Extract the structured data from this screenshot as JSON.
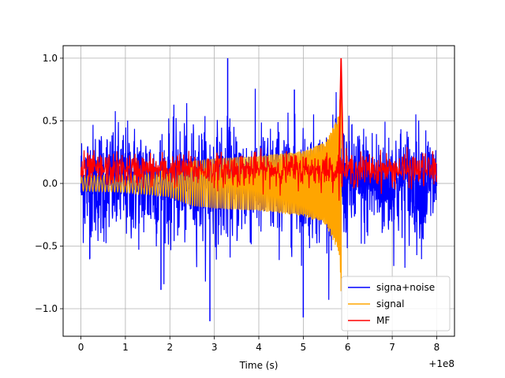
{
  "chart_data": {
    "type": "line",
    "title": "",
    "xlabel": "Time (s)",
    "ylabel": "",
    "x_offset_label": "+1e8",
    "xlim": [
      -0.4,
      8.4
    ],
    "ylim": [
      -1.22,
      1.1
    ],
    "x_ticks": [
      0,
      1,
      2,
      3,
      4,
      5,
      6,
      7,
      8
    ],
    "x_tick_labels": [
      "0",
      "1",
      "2",
      "3",
      "4",
      "5",
      "6",
      "7",
      "8"
    ],
    "y_ticks": [
      -1.0,
      -0.5,
      0.0,
      0.5,
      1.0
    ],
    "y_tick_labels": [
      "−1.0",
      "−0.5",
      "0.0",
      "0.5",
      "1.0"
    ],
    "grid": true,
    "legend_position": "lower-right",
    "series": [
      {
        "name": "signa+noise",
        "color": "#0000ff",
        "x_range": [
          0,
          8
        ],
        "description": "noisy band roughly between -0.6 and +0.6, spikes to about -1.1 and +1.0",
        "typical_amplitude": [
          -0.55,
          0.55
        ],
        "peak_values": [
          {
            "x": 2.9,
            "y": -1.1
          },
          {
            "x": 3.3,
            "y": 1.0
          },
          {
            "x": 5.0,
            "y": -1.07
          },
          {
            "x": 0.2,
            "y": -0.6
          },
          {
            "x": 1.8,
            "y": -0.85
          },
          {
            "x": 4.8,
            "y": 0.75
          }
        ]
      },
      {
        "name": "signal",
        "color": "#ffa500",
        "x_range": [
          0,
          5.85
        ],
        "description": "chirp with growing amplitude ending near t=5.85",
        "envelope": {
          "x": [
            0,
            1,
            2,
            2.5,
            3,
            4,
            5,
            5.5,
            5.8,
            5.85
          ],
          "upper": [
            0.06,
            0.07,
            0.11,
            0.18,
            0.2,
            0.22,
            0.26,
            0.33,
            0.55,
            1.0
          ],
          "lower": [
            -0.06,
            -0.07,
            -0.11,
            -0.18,
            -0.2,
            -0.22,
            -0.26,
            -0.33,
            -0.55,
            -0.86
          ]
        }
      },
      {
        "name": "MF",
        "color": "#ff0000",
        "x_range": [
          0,
          8
        ],
        "description": "matched-filter output, noise between about -0.02 and 0.25, sharp peak at t=5.85",
        "typical_range": [
          0.0,
          0.22
        ],
        "peak": {
          "x": 5.85,
          "y": 1.0
        }
      }
    ]
  }
}
